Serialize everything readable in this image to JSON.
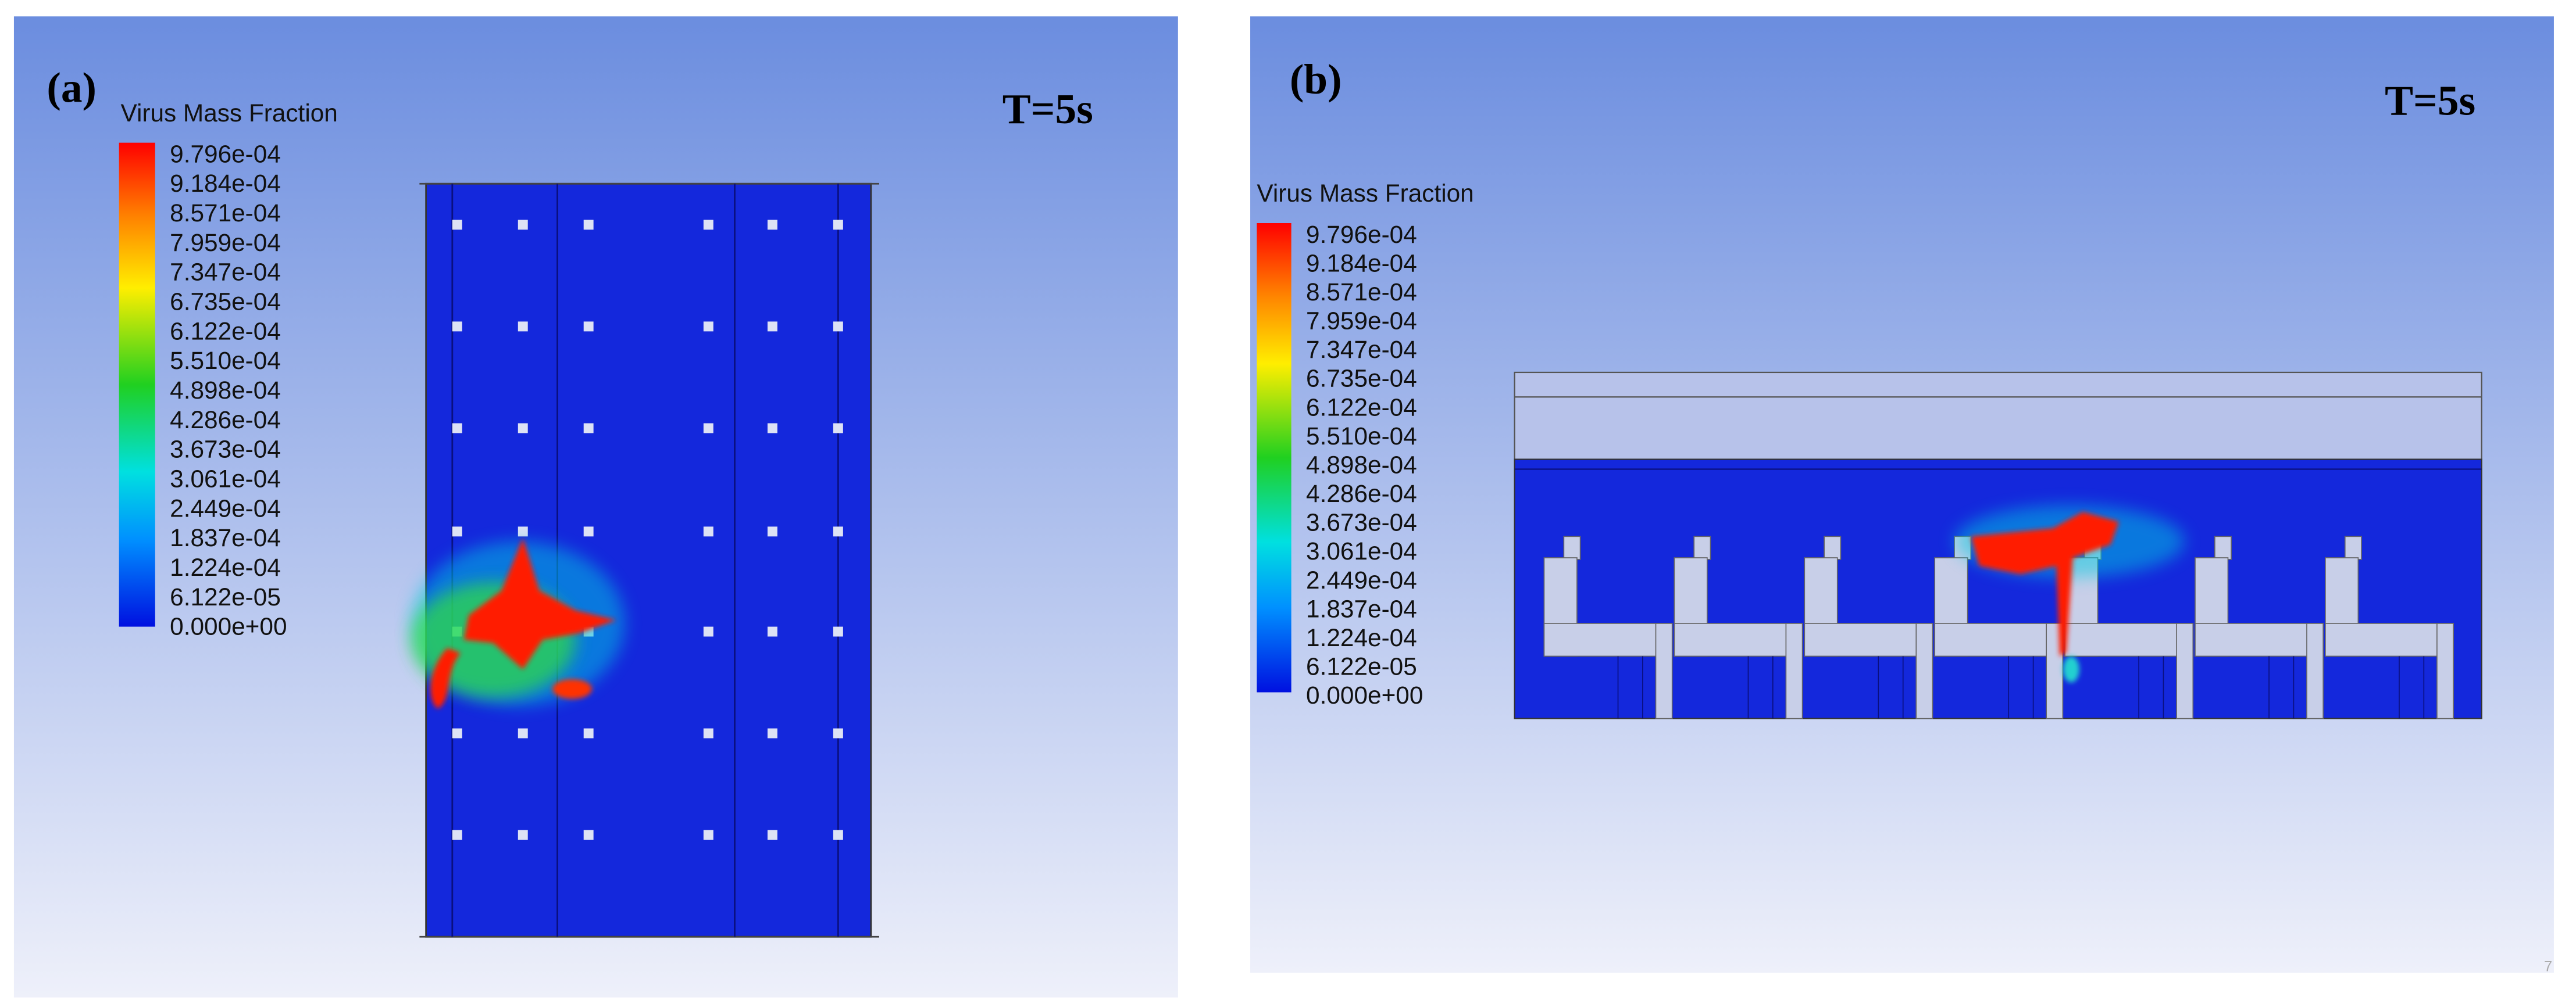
{
  "panels": [
    {
      "label": "(a)",
      "time": "T=5s",
      "legend": {
        "title": "Virus Mass Fraction",
        "ticks": [
          "9.796e-04",
          "9.184e-04",
          "8.571e-04",
          "7.959e-04",
          "7.347e-04",
          "6.735e-04",
          "6.122e-04",
          "5.510e-04",
          "4.898e-04",
          "4.286e-04",
          "3.673e-04",
          "3.061e-04",
          "2.449e-04",
          "1.837e-04",
          "1.224e-04",
          "6.122e-05",
          "0.000e+00"
        ]
      }
    },
    {
      "label": "(b)",
      "time": "T=5s",
      "legend": {
        "title": "Virus Mass Fraction",
        "ticks": [
          "9.796e-04",
          "9.184e-04",
          "8.571e-04",
          "7.959e-04",
          "7.347e-04",
          "6.735e-04",
          "6.122e-04",
          "5.510e-04",
          "4.898e-04",
          "4.286e-04",
          "3.673e-04",
          "3.061e-04",
          "2.449e-04",
          "1.837e-04",
          "1.224e-04",
          "6.122e-05",
          "0.000e+00"
        ]
      }
    }
  ],
  "page_number": "7"
}
